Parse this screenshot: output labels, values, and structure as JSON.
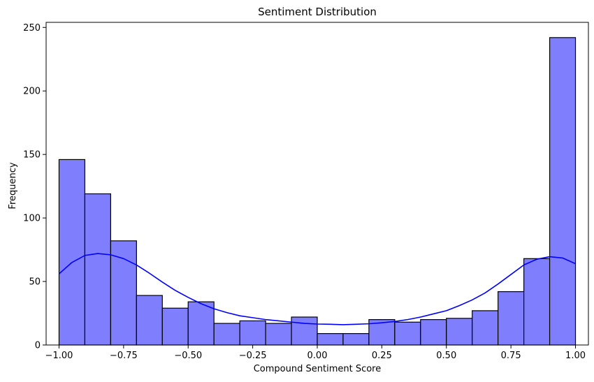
{
  "chart_data": {
    "type": "bar",
    "subtype": "histogram",
    "title": "Sentiment Distribution",
    "xlabel": "Compound Sentiment Score",
    "ylabel": "Frequency",
    "xlim": [
      -1.05,
      1.05
    ],
    "ylim": [
      0,
      254
    ],
    "bin_edges": [
      -1.0,
      -0.9,
      -0.8,
      -0.7,
      -0.6,
      -0.5,
      -0.4,
      -0.3,
      -0.2,
      -0.1,
      0.0,
      0.1,
      0.2,
      0.3,
      0.4,
      0.5,
      0.6,
      0.7,
      0.8,
      0.9,
      1.0
    ],
    "values": [
      146,
      119,
      82,
      39,
      29,
      34,
      17,
      19,
      17,
      22,
      9,
      9,
      20,
      18,
      20,
      21,
      27,
      42,
      68,
      242
    ],
    "x_ticks": [
      -1.0,
      -0.75,
      -0.5,
      -0.25,
      0.0,
      0.25,
      0.5,
      0.75,
      1.0
    ],
    "x_tick_labels": [
      "−1.00",
      "−0.75",
      "−0.50",
      "−0.25",
      "0.00",
      "0.25",
      "0.50",
      "0.75",
      "1.00"
    ],
    "y_ticks": [
      0,
      50,
      100,
      150,
      200,
      250
    ],
    "y_tick_labels": [
      "0",
      "50",
      "100",
      "150",
      "200",
      "250"
    ],
    "kde": {
      "name": "KDE",
      "x": [
        -1.0,
        -0.95,
        -0.9,
        -0.85,
        -0.8,
        -0.75,
        -0.7,
        -0.65,
        -0.6,
        -0.55,
        -0.5,
        -0.45,
        -0.4,
        -0.35,
        -0.3,
        -0.25,
        -0.2,
        -0.15,
        -0.1,
        -0.05,
        0.0,
        0.05,
        0.1,
        0.15,
        0.2,
        0.25,
        0.3,
        0.35,
        0.4,
        0.45,
        0.5,
        0.55,
        0.6,
        0.65,
        0.7,
        0.75,
        0.8,
        0.85,
        0.9,
        0.95,
        1.0
      ],
      "y": [
        56,
        65,
        70.5,
        72,
        71,
        68,
        63,
        56.5,
        49.5,
        43,
        37.5,
        32.5,
        28.5,
        25.5,
        23,
        21.5,
        20,
        19,
        18,
        17,
        16.5,
        16.3,
        16,
        16.3,
        16.7,
        17.5,
        18.5,
        20,
        22,
        24.5,
        27,
        31,
        35.5,
        41,
        48,
        55.5,
        63,
        67.5,
        69.5,
        68.5,
        64
      ]
    },
    "colors": {
      "bar_fill": "#7f7ffe",
      "bar_edge": "#000000",
      "kde_line": "#0000ff"
    },
    "grid": false,
    "legend": "none"
  }
}
